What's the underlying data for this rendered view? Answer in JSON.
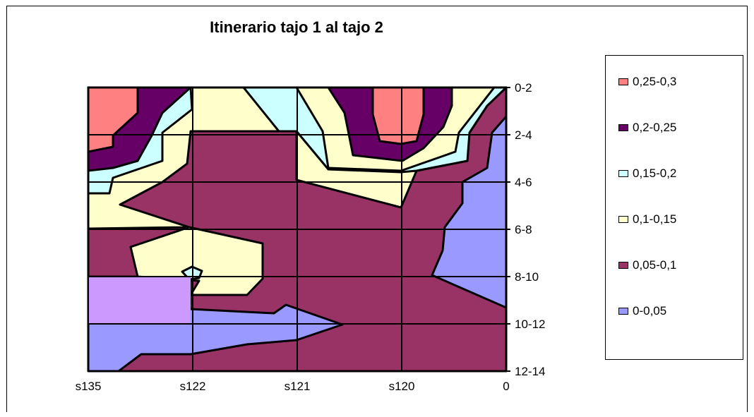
{
  "chart_data": {
    "type": "contour",
    "title": "Itinerario tajo 1 al tajo 2",
    "xlabel": "",
    "ylabel": "",
    "x_categories": [
      "s135",
      "s122",
      "s121",
      "s120",
      "0"
    ],
    "y_categories": [
      "0-2",
      "2-4",
      "4-6",
      "6-8",
      "8-10",
      "10-12",
      "12-14"
    ],
    "levels": [
      {
        "name": "0,25-0,3",
        "range": [
          0.25,
          0.3
        ],
        "color": "#ff8080"
      },
      {
        "name": "0,2-0,25",
        "range": [
          0.2,
          0.25
        ],
        "color": "#660066"
      },
      {
        "name": "0,15-0,2",
        "range": [
          0.15,
          0.2
        ],
        "color": "#ccffff"
      },
      {
        "name": "0,1-0,15",
        "range": [
          0.1,
          0.15
        ],
        "color": "#ffffcc"
      },
      {
        "name": "0,05-0,1",
        "range": [
          0.05,
          0.1
        ],
        "color": "#993366"
      },
      {
        "name": "0-0,05",
        "range": [
          0,
          0.05
        ],
        "color": "#9999ff"
      }
    ],
    "grid": true,
    "legend_position": "right"
  }
}
